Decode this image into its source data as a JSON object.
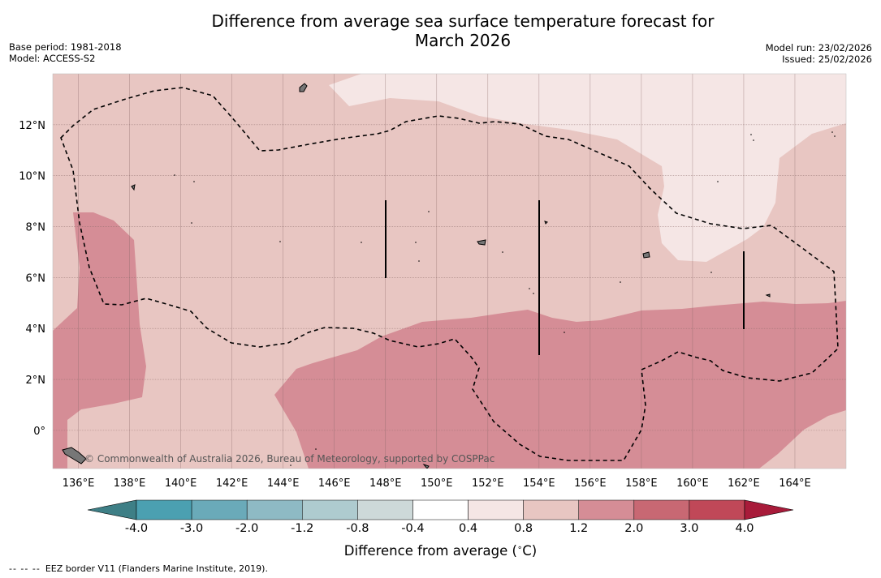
{
  "title": {
    "line1": "Difference from average sea surface temperature forecast for",
    "line2": "March 2026"
  },
  "meta_left": {
    "base_period": "Base period: 1981-2018",
    "model": "Model: ACCESS-S2"
  },
  "meta_right": {
    "model_run": "Model run: 23/02/2026",
    "issued": "Issued: 25/02/2026"
  },
  "map": {
    "lon_range": [
      135,
      166
    ],
    "lat_range": [
      -1.5,
      14
    ],
    "lon_labels": [
      "136°E",
      "138°E",
      "140°E",
      "142°E",
      "144°E",
      "146°E",
      "148°E",
      "150°E",
      "152°E",
      "154°E",
      "156°E",
      "158°E",
      "160°E",
      "162°E",
      "164°E"
    ],
    "lat_labels": [
      "12°N",
      "10°N",
      "8°N",
      "6°N",
      "4°N",
      "2°N",
      "0°"
    ],
    "credit": "Commonwealth of Australia 2026, Bureau of Meteorology, supported by COSPPac"
  },
  "colorbar": {
    "ticks": [
      "-4.0",
      "-3.0",
      "-2.0",
      "-1.2",
      "-0.8",
      "-0.4",
      "0.4",
      "0.8",
      "1.2",
      "2.0",
      "3.0",
      "4.0"
    ],
    "colors": [
      "#3e7f86",
      "#4ba0b1",
      "#6aaab9",
      "#8ebac4",
      "#aecbcf",
      "#cdd9d9",
      "#ffffff",
      "#f5e6e5",
      "#e8c6c2",
      "#d58d96",
      "#c86873",
      "#c04858",
      "#a81b3a"
    ],
    "label": "Difference from average (°C)"
  },
  "footnote": {
    "dash": "-- -- --",
    "text": "EEZ border V11 (Flanders Marine Institute, 2019)."
  },
  "palette": {
    "light": "#e8c6c2",
    "lighter": "#f5e6e5",
    "medium": "#d58d96"
  }
}
